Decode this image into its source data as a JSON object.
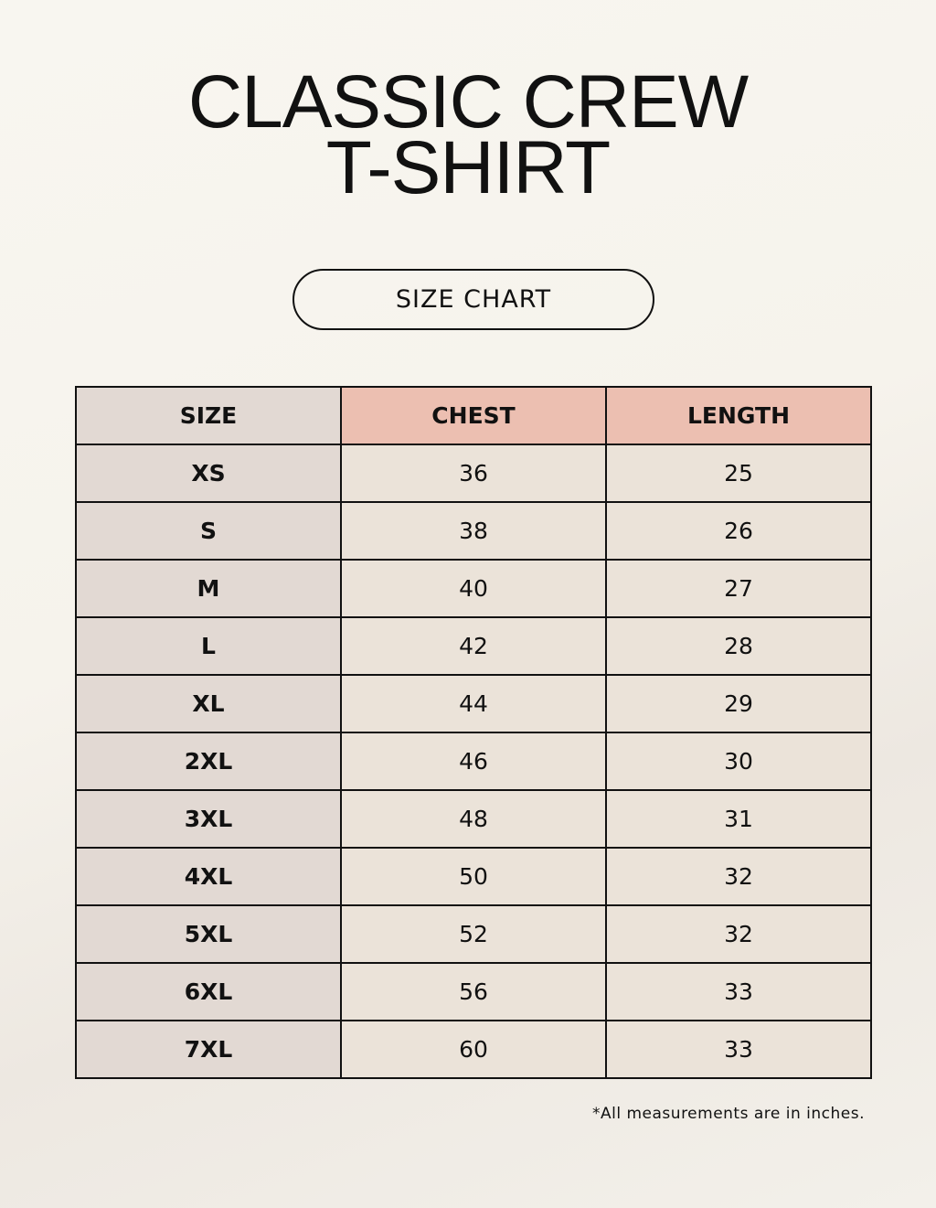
{
  "title": {
    "line1": "CLASSIC CREW",
    "line2": "T-SHIRT"
  },
  "subtitle": "SIZE CHART",
  "table": {
    "headers": [
      "SIZE",
      "CHEST",
      "LENGTH"
    ],
    "rows": [
      [
        "XS",
        "36",
        "25"
      ],
      [
        "S",
        "38",
        "26"
      ],
      [
        "M",
        "40",
        "27"
      ],
      [
        "L",
        "42",
        "28"
      ],
      [
        "XL",
        "44",
        "29"
      ],
      [
        "2XL",
        "46",
        "30"
      ],
      [
        "3XL",
        "48",
        "31"
      ],
      [
        "4XL",
        "50",
        "32"
      ],
      [
        "5XL",
        "52",
        "32"
      ],
      [
        "6XL",
        "56",
        "33"
      ],
      [
        "7XL",
        "60",
        "33"
      ]
    ]
  },
  "note": "*All measurements are in inches.",
  "colors": {
    "header_accent": "#ecbfb1",
    "size_column": "#e2d9d3",
    "cell": "#ebe3d9"
  }
}
